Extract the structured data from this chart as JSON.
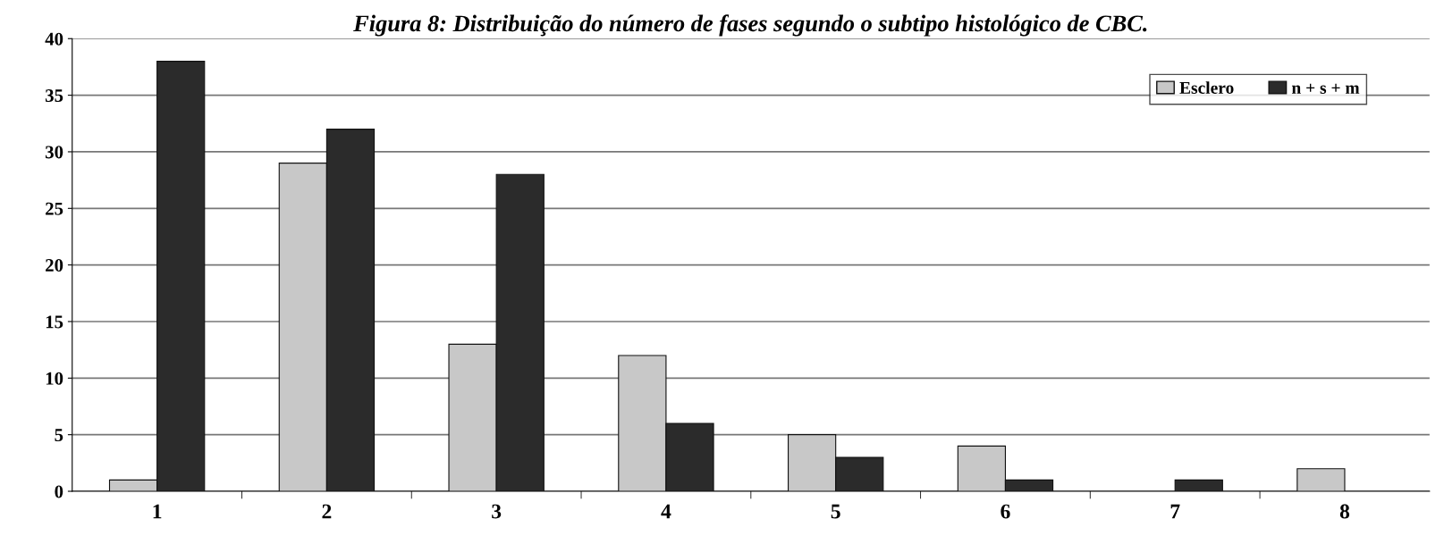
{
  "chart_data": {
    "type": "bar",
    "title": "Figura 8: Distribuição do número de fases segundo o subtipo histológico de CBC.",
    "categories": [
      "1",
      "2",
      "3",
      "4",
      "5",
      "6",
      "7",
      "8"
    ],
    "series": [
      {
        "name": "Esclero",
        "color": "#c8c8c8",
        "values": [
          1,
          29,
          13,
          12,
          5,
          4,
          0,
          2
        ]
      },
      {
        "name": "n + s + m",
        "color": "#2b2b2b",
        "values": [
          38,
          32,
          28,
          6,
          3,
          1,
          1,
          0
        ]
      }
    ],
    "ylim": [
      0,
      40
    ],
    "yticks": [
      0,
      5,
      10,
      15,
      20,
      25,
      30,
      35,
      40
    ],
    "grid": "y",
    "legend": "top right"
  }
}
